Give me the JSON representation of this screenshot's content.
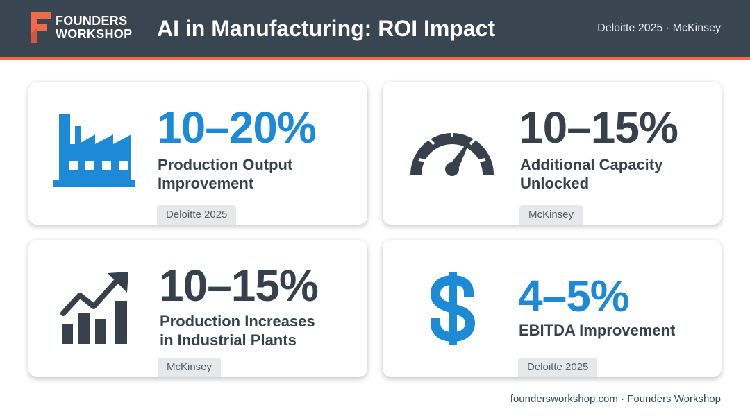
{
  "brand": {
    "line1": "FOUNDERS",
    "line2": "WORKSHOP"
  },
  "header": {
    "title": "AI in Manufacturing: ROI Impact",
    "sources": "Deloitte 2025 · McKinsey"
  },
  "colors": {
    "header_bg": "#3a4552",
    "accent": "#ef6a4a",
    "blue": "#1c8ad6",
    "dark": "#38414b"
  },
  "cards": [
    {
      "icon": "factory-icon",
      "value": "10–20%",
      "label_line1": "Production Output",
      "label_line2": "Improvement",
      "source": "Deloitte 2025"
    },
    {
      "icon": "speedometer-icon",
      "value": "10–15%",
      "label_line1": "Additional Capacity",
      "label_line2": "Unlocked",
      "source": "McKinsey"
    },
    {
      "icon": "growth-chart-icon",
      "value": "10–15%",
      "label_line1": "Production Increases",
      "label_line2": "in Industrial Plants",
      "source": "McKinsey"
    },
    {
      "icon": "dollar-icon",
      "value": "4–5%",
      "label_line1": "EBITDA Improvement",
      "source": "Deloitte 2025"
    }
  ],
  "footer": {
    "text": "foundersworkshop.com · Founders Workshop"
  }
}
